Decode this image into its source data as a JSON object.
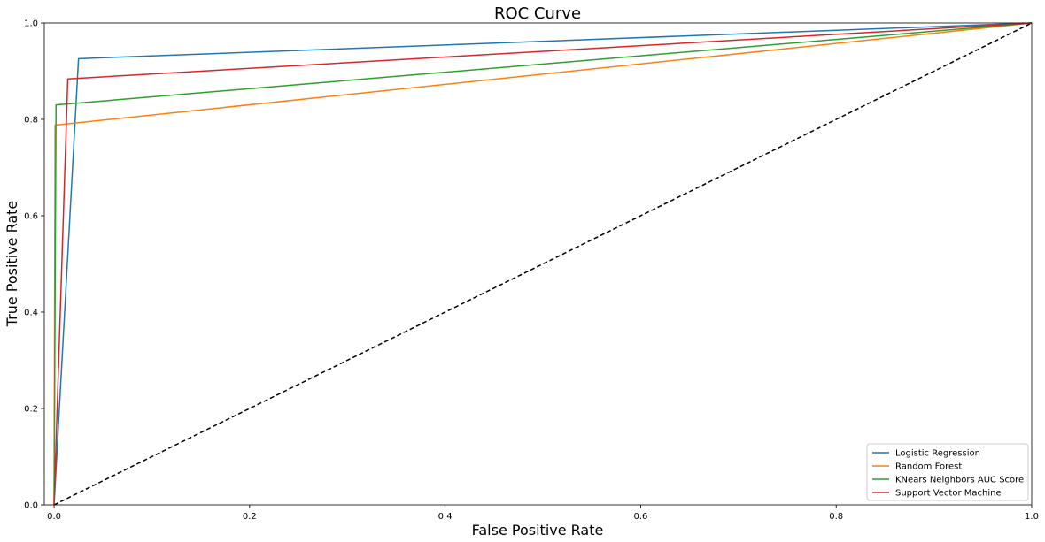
{
  "chart_data": {
    "type": "line",
    "title": "ROC Curve",
    "xlabel": "False Positive Rate",
    "ylabel": "True Positive Rate",
    "xlim": [
      -0.01,
      1.0
    ],
    "ylim": [
      0.0,
      1.0
    ],
    "xticks": [
      "0.0",
      "0.2",
      "0.4",
      "0.6",
      "0.8",
      "1.0"
    ],
    "yticks": [
      "0.0",
      "0.2",
      "0.4",
      "0.6",
      "0.8",
      "1.0"
    ],
    "grid": false,
    "legend_position": "lower-right",
    "series": [
      {
        "name": "Logistic Regression",
        "color": "#1f77b4",
        "points": [
          [
            0.0,
            0.0
          ],
          [
            0.025,
            0.926
          ],
          [
            1.0,
            1.0
          ]
        ]
      },
      {
        "name": "Random Forest",
        "color": "#ff7f0e",
        "points": [
          [
            0.0,
            0.0
          ],
          [
            0.001,
            0.788
          ],
          [
            1.0,
            1.0
          ]
        ]
      },
      {
        "name": "KNears Neighbors AUC Score",
        "color": "#2ca02c",
        "points": [
          [
            0.0,
            0.0
          ],
          [
            0.002,
            0.83
          ],
          [
            1.0,
            1.0
          ]
        ]
      },
      {
        "name": "Support Vector Machine",
        "color": "#d62728",
        "points": [
          [
            0.0,
            0.0
          ],
          [
            0.014,
            0.884
          ],
          [
            1.0,
            1.0
          ]
        ]
      }
    ],
    "reference_line": {
      "color": "#000000",
      "style": "dashed",
      "points": [
        [
          0.0,
          0.0
        ],
        [
          1.0,
          1.0
        ]
      ]
    }
  }
}
